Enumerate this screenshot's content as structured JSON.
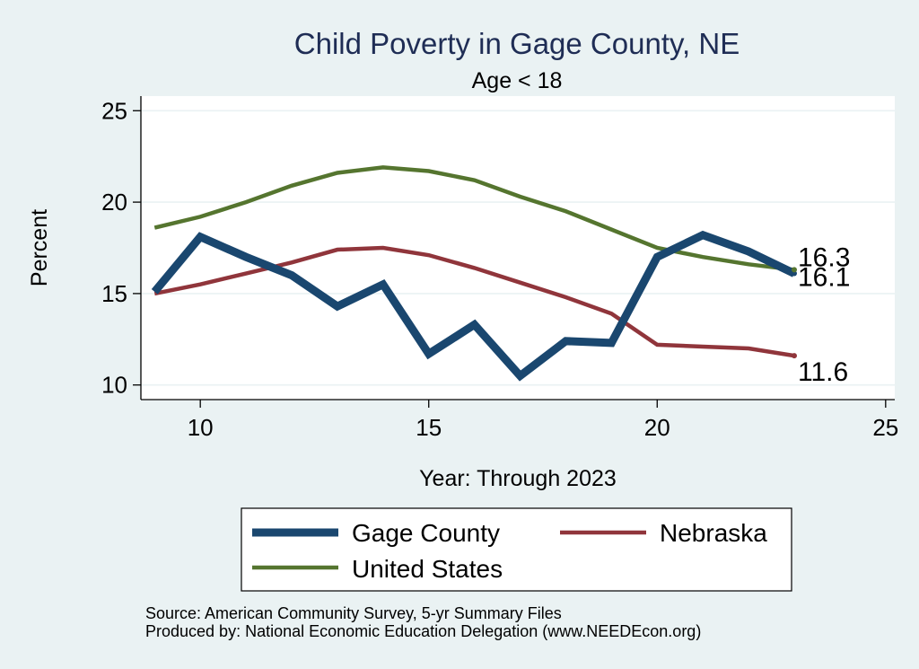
{
  "chart_data": {
    "type": "line",
    "title": "Child Poverty in Gage County, NE",
    "subtitle": "Age < 18",
    "xlabel": "Year: Through 2023",
    "ylabel": "Percent",
    "xlim": [
      8.7,
      25.2
    ],
    "ylim": [
      9.2,
      25.8
    ],
    "xticks": [
      10,
      15,
      20,
      25
    ],
    "yticks": [
      10,
      15,
      20,
      25
    ],
    "grid": true,
    "legend_position": "bottom",
    "series": [
      {
        "name": "Gage County",
        "color": "#1a476f",
        "width": 9,
        "x": [
          9,
          10,
          11,
          12,
          13,
          14,
          15,
          16,
          17,
          18,
          19,
          20,
          21,
          22,
          23
        ],
        "values": [
          15.1,
          18.1,
          17.0,
          16.0,
          14.3,
          15.5,
          11.7,
          13.3,
          10.5,
          12.4,
          12.3,
          17.0,
          18.2,
          17.3,
          16.1
        ],
        "end_label": "16.1"
      },
      {
        "name": "Nebraska",
        "color": "#90353b",
        "width": 4.5,
        "x": [
          9,
          10,
          11,
          12,
          13,
          14,
          15,
          16,
          17,
          18,
          19,
          20,
          21,
          22,
          23
        ],
        "values": [
          15.0,
          15.5,
          16.1,
          16.7,
          17.4,
          17.5,
          17.1,
          16.4,
          15.6,
          14.8,
          13.9,
          12.2,
          12.1,
          12.0,
          11.6
        ],
        "end_label": "11.6"
      },
      {
        "name": "United States",
        "color": "#55752f",
        "width": 4.5,
        "x": [
          9,
          10,
          11,
          12,
          13,
          14,
          15,
          16,
          17,
          18,
          19,
          20,
          21,
          22,
          23
        ],
        "values": [
          18.6,
          19.2,
          20.0,
          20.9,
          21.6,
          21.9,
          21.7,
          21.2,
          20.3,
          19.5,
          18.5,
          17.5,
          17.0,
          16.6,
          16.3
        ],
        "end_label": "16.3"
      }
    ]
  },
  "notes": {
    "source": "Source: American Community Survey, 5-yr Summary Files",
    "produced": "Produced by: National Economic Education Delegation (www.NEEDEcon.org)"
  }
}
